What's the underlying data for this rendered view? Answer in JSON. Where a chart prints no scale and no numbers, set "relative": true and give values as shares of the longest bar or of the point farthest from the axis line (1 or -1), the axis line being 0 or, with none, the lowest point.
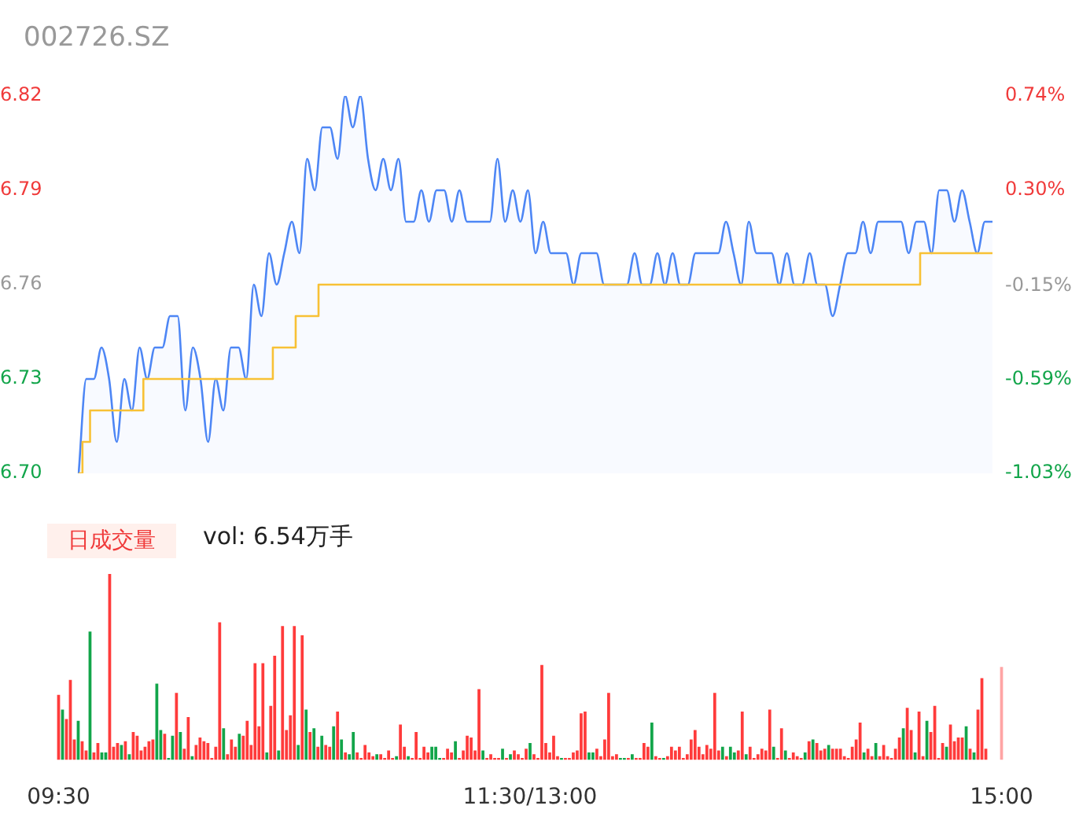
{
  "chart_data": [
    {
      "type": "line",
      "title": "002726.SZ",
      "marker": "none",
      "tick_labels": "y",
      "categories": [
        null,
        null,
        null,
        null,
        null,
        null,
        null,
        null,
        null,
        null,
        null,
        null,
        null,
        null,
        null,
        null,
        null,
        null,
        null,
        null,
        null,
        null,
        null,
        null,
        null,
        null,
        null,
        null,
        null,
        null,
        null,
        null,
        null,
        null,
        null,
        null,
        null,
        null,
        null,
        null,
        null,
        null,
        null,
        null,
        null,
        null,
        null,
        null,
        null,
        null,
        null,
        null,
        null,
        null,
        null,
        null,
        null,
        null,
        null,
        null,
        null,
        null,
        null,
        null,
        null,
        null,
        null,
        null,
        null,
        null,
        null,
        null,
        null,
        null,
        null,
        null,
        null,
        null,
        null,
        null,
        null,
        null,
        null,
        null,
        null,
        null,
        null,
        null,
        null,
        null,
        null,
        null,
        null,
        null,
        null,
        null,
        null,
        null,
        null,
        null,
        null,
        null,
        null,
        null,
        null,
        null,
        null,
        null,
        null,
        null,
        null,
        null,
        null,
        null,
        null,
        null,
        null,
        null,
        null,
        null,
        null
      ],
      "ylim": [
        6.7,
        6.82
      ],
      "yticks": [
        {
          "value": 6.7,
          "label": "6.70"
        },
        6.73,
        6.76,
        6.79,
        6.82
      ],
      "y2lim": [
        -1.03,
        0.74
      ],
      "y2ticks": [
        {
          "value": -1.03,
          "label": "-1.03%"
        },
        {
          "value": -0.59,
          "label": "-0.59%"
        },
        {
          "value": -0.15,
          "label": "-0.15%"
        },
        {
          "value": 0.3,
          "label": "0.30%"
        },
        {
          "value": 0.74,
          "label": "0.74%"
        }
      ],
      "series": [
        {
          "type": "area",
          "color": "#4d86f5",
          "values": [
            6.7,
            6.73,
            6.73,
            6.74,
            6.73,
            6.71,
            6.73,
            6.72,
            6.74,
            6.73,
            6.74,
            6.74,
            6.75,
            6.75,
            6.72,
            6.74,
            6.73,
            6.71,
            6.73,
            6.72,
            6.74,
            6.74,
            6.73,
            6.76,
            6.75,
            6.77,
            6.76,
            6.77,
            6.78,
            6.77,
            6.8,
            6.79,
            6.81,
            6.81,
            6.8,
            6.82,
            6.81,
            6.82,
            6.8,
            6.79,
            6.8,
            6.79,
            6.8,
            6.78,
            6.78,
            6.79,
            6.78,
            6.79,
            6.79,
            6.78,
            6.79,
            6.78,
            6.78,
            6.78,
            6.78,
            6.8,
            6.78,
            6.79,
            6.78,
            6.79,
            6.77,
            6.78,
            6.77,
            6.77,
            6.77,
            6.76,
            6.77,
            6.77,
            6.77,
            6.76,
            6.76,
            6.76,
            6.76,
            6.77,
            6.76,
            6.76,
            6.77,
            6.76,
            6.77,
            6.76,
            6.76,
            6.77,
            6.77,
            6.77,
            6.77,
            6.78,
            6.77,
            6.76,
            6.78,
            6.77,
            6.77,
            6.77,
            6.76,
            6.77,
            6.76,
            6.76,
            6.77,
            6.76,
            6.76,
            6.75,
            6.76,
            6.77,
            6.77,
            6.78,
            6.77,
            6.78,
            6.78,
            6.78,
            6.78,
            6.77,
            6.78,
            6.78,
            6.77,
            6.79,
            6.79,
            6.78,
            6.79,
            6.78,
            6.77,
            6.78,
            6.78
          ]
        },
        {
          "type": "step",
          "color": "#f8c135",
          "values": [
            6.7,
            6.71,
            6.72,
            6.72,
            6.72,
            6.72,
            6.72,
            6.72,
            6.72,
            6.73,
            6.73,
            6.73,
            6.73,
            6.73,
            6.73,
            6.73,
            6.73,
            6.73,
            6.73,
            6.73,
            6.73,
            6.73,
            6.73,
            6.73,
            6.73,
            6.73,
            6.74,
            6.74,
            6.74,
            6.75,
            6.75,
            6.75,
            6.76,
            6.76,
            6.76,
            6.76,
            6.76,
            6.76,
            6.76,
            6.76,
            6.76,
            6.76,
            6.76,
            6.76,
            6.76,
            6.76,
            6.76,
            6.76,
            6.76,
            6.76,
            6.76,
            6.76,
            6.76,
            6.76,
            6.76,
            6.76,
            6.76,
            6.76,
            6.76,
            6.76,
            6.76,
            6.76,
            6.76,
            6.76,
            6.76,
            6.76,
            6.76,
            6.76,
            6.76,
            6.76,
            6.76,
            6.76,
            6.76,
            6.76,
            6.76,
            6.76,
            6.76,
            6.76,
            6.76,
            6.76,
            6.76,
            6.76,
            6.76,
            6.76,
            6.76,
            6.76,
            6.76,
            6.76,
            6.76,
            6.76,
            6.76,
            6.76,
            6.76,
            6.76,
            6.76,
            6.76,
            6.76,
            6.76,
            6.76,
            6.76,
            6.76,
            6.76,
            6.76,
            6.76,
            6.76,
            6.76,
            6.76,
            6.76,
            6.76,
            6.76,
            6.76,
            6.77,
            6.77,
            6.77,
            6.77,
            6.77,
            6.77,
            6.77,
            6.77,
            6.77,
            6.77
          ]
        }
      ]
    },
    {
      "type": "bar",
      "relative": true,
      "title": "日成交量",
      "subtitle": "vol: 6.54万手",
      "categories": [
        "09:30",
        null,
        null,
        null,
        null,
        null,
        null,
        null,
        null,
        null,
        null,
        null,
        null,
        null,
        null,
        null,
        null,
        null,
        null,
        null,
        null,
        null,
        null,
        null,
        null,
        null,
        null,
        null,
        null,
        null,
        null,
        null,
        null,
        null,
        null,
        null,
        null,
        null,
        null,
        null,
        null,
        null,
        null,
        null,
        null,
        null,
        null,
        null,
        null,
        null,
        null,
        null,
        null,
        null,
        null,
        null,
        null,
        null,
        null,
        null,
        null,
        null,
        null,
        null,
        null,
        null,
        null,
        null,
        null,
        null,
        null,
        null,
        null,
        null,
        null,
        null,
        null,
        null,
        null,
        null,
        null,
        null,
        null,
        null,
        null,
        null,
        null,
        null,
        null,
        null,
        null,
        null,
        null,
        null,
        null,
        null,
        null,
        null,
        null,
        null,
        null,
        null,
        null,
        null,
        null,
        null,
        null,
        null,
        null,
        null,
        null,
        null,
        null,
        null,
        null,
        null,
        null,
        null,
        null,
        null,
        "11:30/13:00",
        null,
        null,
        null,
        null,
        null,
        null,
        null,
        null,
        null,
        null,
        null,
        null,
        null,
        null,
        null,
        null,
        null,
        null,
        null,
        null,
        null,
        null,
        null,
        null,
        null,
        null,
        null,
        null,
        null,
        null,
        null,
        null,
        null,
        null,
        null,
        null,
        null,
        null,
        null,
        null,
        null,
        null,
        null,
        null,
        null,
        null,
        null,
        null,
        null,
        null,
        null,
        null,
        null,
        null,
        null,
        null,
        null,
        null,
        null,
        null,
        null,
        null,
        null,
        null,
        null,
        null,
        null,
        null,
        null,
        null,
        null,
        null,
        null,
        null,
        null,
        null,
        null,
        null,
        null,
        null,
        null,
        null,
        null,
        null,
        null,
        null,
        null,
        null,
        null,
        null,
        null,
        null,
        null,
        null,
        null,
        null,
        null,
        null,
        null,
        null,
        null,
        null,
        null,
        null,
        null,
        null,
        null,
        null,
        null,
        null,
        null,
        null,
        null,
        null,
        null,
        null,
        null,
        null,
        null,
        "15:00"
      ],
      "values": [
        0.35,
        0.27,
        0.22,
        0.43,
        0.11,
        0.21,
        0.1,
        0.05,
        0.69,
        0.04,
        0.09,
        0.04,
        0.04,
        1,
        0.07,
        0.09,
        0.08,
        0.1,
        0.03,
        0.15,
        0.13,
        0.05,
        0.07,
        0.1,
        0.11,
        0.41,
        0.16,
        0.14,
        0.01,
        0.13,
        0.36,
        0.15,
        0.06,
        0.23,
        0.02,
        0.08,
        0.12,
        0.1,
        0.09,
        0.01,
        0.07,
        0.74,
        0.17,
        0.03,
        0.11,
        0.07,
        0.14,
        0.13,
        0.21,
        0.08,
        0.52,
        0.18,
        0.52,
        0.04,
        0.29,
        0.56,
        0.05,
        0.72,
        0.16,
        0.24,
        0.72,
        0.08,
        0.67,
        0.27,
        0.15,
        0.17,
        0.07,
        0.13,
        0.08,
        0.07,
        0.18,
        0.26,
        0.11,
        0.04,
        0.03,
        0.15,
        0.04,
        0.01,
        0.08,
        0.04,
        0.02,
        0.03,
        0.03,
        0.01,
        0.05,
        0.01,
        0.02,
        0.19,
        0.07,
        0.02,
        0.01,
        0.15,
        0.01,
        0.07,
        0.04,
        0.07,
        0.07,
        0.01,
        0.01,
        0.06,
        0.04,
        0.1,
        0.01,
        0.05,
        0.13,
        0.12,
        0.05,
        0.38,
        0.05,
        0.01,
        0.03,
        0.01,
        0.01,
        0.06,
        0.01,
        0.03,
        0.05,
        0.03,
        0.01,
        0.06,
        0.09,
        0.03,
        0.01,
        0.51,
        0.09,
        0.04,
        0.13,
        0.02,
        0.01,
        0.01,
        0.01,
        0.04,
        0.05,
        0.25,
        0.26,
        0.04,
        0.04,
        0.06,
        0.02,
        0.11,
        0.36,
        0.02,
        0.03,
        0.01,
        0.01,
        0.01,
        0.03,
        0.01,
        0.01,
        0.09,
        0.07,
        0.2,
        0.02,
        0.01,
        0.01,
        0.02,
        0.07,
        0.05,
        0.07,
        0.01,
        0.03,
        0.11,
        0.16,
        0.07,
        0.03,
        0.08,
        0.06,
        0.36,
        0.05,
        0.07,
        0.02,
        0.07,
        0.04,
        0.05,
        0.26,
        0.03,
        0.07,
        0.01,
        0.03,
        0.06,
        0.05,
        0.27,
        0.07,
        0.01,
        0.17,
        0.05,
        0.01,
        0.04,
        0.02,
        0.01,
        0.04,
        0.1,
        0.11,
        0.09,
        0.05,
        0.06,
        0.08,
        0.06,
        0.06,
        0.06,
        0.02,
        0.01,
        0.07,
        0.11,
        0.2,
        0.04,
        0.06,
        0.02,
        0.09,
        0.02,
        0.08,
        0.02,
        0.01,
        0.06,
        0.12,
        0.17,
        0.28,
        0.16,
        0.04,
        0.26,
        0.02,
        0.21,
        0.15,
        0.29,
        0.01,
        0.09,
        0.07,
        0.19,
        0.1,
        0.12,
        0.12,
        0.18,
        0.06,
        0.04,
        0.27,
        0.44,
        0.06,
        0,
        0,
        0,
        0.5
      ],
      "colors": [
        "#ff3b3b",
        "#12a54a",
        "#ff3b3b",
        "#ff3b3b",
        "#ff3b3b",
        "#12a54a",
        "#ff3b3b",
        "#ff3b3b",
        "#12a54a",
        "#ff3b3b",
        "#ff3b3b",
        "#12a54a",
        "#12a54a",
        "#ff3b3b",
        "#ff3b3b",
        "#ff3b3b",
        "#12a54a",
        "#ff3b3b",
        "#12a54a",
        "#ff3b3b",
        "#ff3b3b",
        "#ff3b3b",
        "#ff3b3b",
        "#ff3b3b",
        "#ff3b3b",
        "#12a54a",
        "#12a54a",
        "#ff3b3b",
        "#12a54a",
        "#12a54a",
        "#ff3b3b",
        "#12a54a",
        "#ff3b3b",
        "#ff3b3b",
        "#12a54a",
        "#ff3b3b",
        "#ff3b3b",
        "#ff3b3b",
        "#ff3b3b",
        "#ff3b3b",
        "#ff3b3b",
        "#ff3b3b",
        "#12a54a",
        "#ff3b3b",
        "#ff3b3b",
        "#ff3b3b",
        "#12a54a",
        "#ff3b3b",
        "#ff3b3b",
        "#ff3b3b",
        "#ff3b3b",
        "#ff3b3b",
        "#ff3b3b",
        "#12a54a",
        "#ff3b3b",
        "#ff3b3b",
        "#12a54a",
        "#ff3b3b",
        "#ff3b3b",
        "#ff3b3b",
        "#ff3b3b",
        "#12a54a",
        "#ff3b3b",
        "#12a54a",
        "#ff3b3b",
        "#12a54a",
        "#ff3b3b",
        "#12a54a",
        "#ff3b3b",
        "#ff3b3b",
        "#12a54a",
        "#ff3b3b",
        "#12a54a",
        "#ff3b3b",
        "#12a54a",
        "#12a54a",
        "#ff3b3b",
        "#ff3b3b",
        "#ff3b3b",
        "#ff3b3b",
        "#ff3b3b",
        "#12a54a",
        "#ff3b3b",
        "#ff3b3b",
        "#ff3b3b",
        "#ff3b3b",
        "#12a54a",
        "#ff3b3b",
        "#ff3b3b",
        "#12a54a",
        "#ff3b3b",
        "#ff3b3b",
        "#ff3b3b",
        "#ff3b3b",
        "#ff3b3b",
        "#12a54a",
        "#12a54a",
        "#12a54a",
        "#ff3b3b",
        "#ff3b3b",
        "#ff3b3b",
        "#12a54a",
        "#ff3b3b",
        "#ff3b3b",
        "#ff3b3b",
        "#ff3b3b",
        "#ff3b3b",
        "#ff3b3b",
        "#12a54a",
        "#ff3b3b",
        "#ff3b3b",
        "#ff3b3b",
        "#ff3b3b",
        "#12a54a",
        "#ff3b3b",
        "#12a54a",
        "#ff3b3b",
        "#ff3b3b",
        "#ff3b3b",
        "#ff3b3b",
        "#12a54a",
        "#ff3b3b",
        "#ff3b3b",
        "#ff3b3b",
        "#ff3b3b",
        "#ff3b3b",
        "#ff3b3b",
        "#ff3b3b",
        "#12a54a",
        "#ff3b3b",
        "#ff3b3b",
        "#ff3b3b",
        "#ff3b3b",
        "#ff3b3b",
        "#ff3b3b",
        "#12a54a",
        "#12a54a",
        "#ff3b3b",
        "#ff3b3b",
        "#ff3b3b",
        "#ff3b3b",
        "#ff3b3b",
        "#ff3b3b",
        "#12a54a",
        "#12a54a",
        "#ff3b3b",
        "#12a54a",
        "#ff3b3b",
        "#ff3b3b",
        "#ff3b3b",
        "#ff3b3b",
        "#12a54a",
        "#ff3b3b",
        "#ff3b3b",
        "#12a54a",
        "#ff3b3b",
        "#ff3b3b",
        "#ff3b3b",
        "#ff3b3b",
        "#ff3b3b",
        "#ff3b3b",
        "#ff3b3b",
        "#ff3b3b",
        "#ff3b3b",
        "#ff3b3b",
        "#ff3b3b",
        "#ff3b3b",
        "#ff3b3b",
        "#ff3b3b",
        "#12a54a",
        "#ff3b3b",
        "#12a54a",
        "#12a54a",
        "#ff3b3b",
        "#ff3b3b",
        "#12a54a",
        "#ff3b3b",
        "#ff3b3b",
        "#ff3b3b",
        "#ff3b3b",
        "#ff3b3b",
        "#ff3b3b",
        "#12a54a",
        "#ff3b3b",
        "#ff3b3b",
        "#12a54a",
        "#ff3b3b",
        "#ff3b3b",
        "#ff3b3b",
        "#ff3b3b",
        "#12a54a",
        "#ff3b3b",
        "#12a54a",
        "#ff3b3b",
        "#ff3b3b",
        "#ff3b3b",
        "#12a54a",
        "#ff3b3b",
        "#ff3b3b",
        "#ff3b3b",
        "#ff3b3b",
        "#ff3b3b",
        "#ff3b3b",
        "#ff3b3b",
        "#ff3b3b",
        "#12a54a",
        "#ff3b3b",
        "#ff3b3b",
        "#12a54a",
        "#ff3b3b",
        "#ff3b3b",
        "#ff3b3b",
        "#ff3b3b",
        "#ff3b3b",
        "#ff3b3b",
        "#12a54a",
        "#ff3b3b",
        "#ff3b3b",
        "#12a54a",
        "#ff3b3b",
        "#ff3b3b",
        "#12a54a",
        "#ff3b3b",
        "#ff3b3b",
        "#ff3b3b",
        "#ff3b3b",
        "#12a54a",
        "#ff3b3b",
        "#ff3b3b",
        "#ff3b3b",
        "#ff3b3b",
        "#12a54a",
        "#ff3b3b",
        "#12a54a",
        "#ff3b3b",
        "#ff3b3b",
        "#ff3b3b",
        "#ff3b3b",
        "#ff3b3b",
        "#ff3b3b",
        "#ffa5a5"
      ]
    }
  ]
}
